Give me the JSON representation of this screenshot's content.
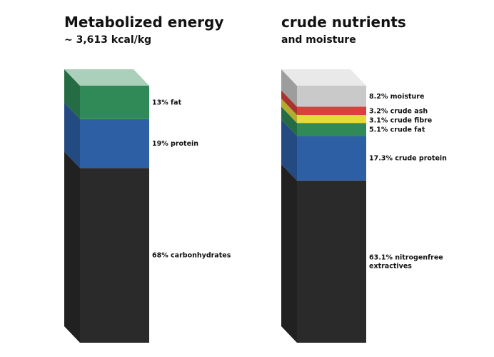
{
  "left": {
    "title": "Metabolized energy",
    "subtitle": "~ 3,613 kcal/kg"
  },
  "right": {
    "title": "crude nutrients",
    "subtitle": "and moisture"
  },
  "chart_data": [
    {
      "type": "bar",
      "title": "Metabolized energy",
      "subtitle": "~ 3,613 kcal/kg",
      "segments": [
        {
          "name": "carbonhydrates",
          "value": 68,
          "label": [
            "68% carbonhydrates"
          ],
          "color": "#2a2a2a"
        },
        {
          "name": "protein",
          "value": 19,
          "label": [
            "19% protein"
          ],
          "color": "#2d5fa5"
        },
        {
          "name": "fat",
          "value": 13,
          "label": [
            "13% fat"
          ],
          "color": "#2f8a58"
        }
      ]
    },
    {
      "type": "bar",
      "title": "crude nutrients",
      "subtitle": "and moisture",
      "segments": [
        {
          "name": "nitrogenfree extractives",
          "value": 63.1,
          "label": [
            "63.1% nitrogenfree",
            "extractives"
          ],
          "color": "#2a2a2a"
        },
        {
          "name": "crude protein",
          "value": 17.3,
          "label": [
            "17.3% crude protein"
          ],
          "color": "#2d5fa5"
        },
        {
          "name": "crude fat",
          "value": 5.1,
          "label": [
            "5.1% crude fat"
          ],
          "color": "#2f8a58"
        },
        {
          "name": "crude fibre",
          "value": 3.1,
          "label": [
            "3.1% crude fibre"
          ],
          "color": "#e3dd3a"
        },
        {
          "name": "crude ash",
          "value": 3.2,
          "label": [
            "3.2% crude ash"
          ],
          "color": "#d8413c"
        },
        {
          "name": "moisture",
          "value": 8.2,
          "label": [
            "8.2% moisture"
          ],
          "color": "#c9c9c9"
        }
      ]
    }
  ]
}
